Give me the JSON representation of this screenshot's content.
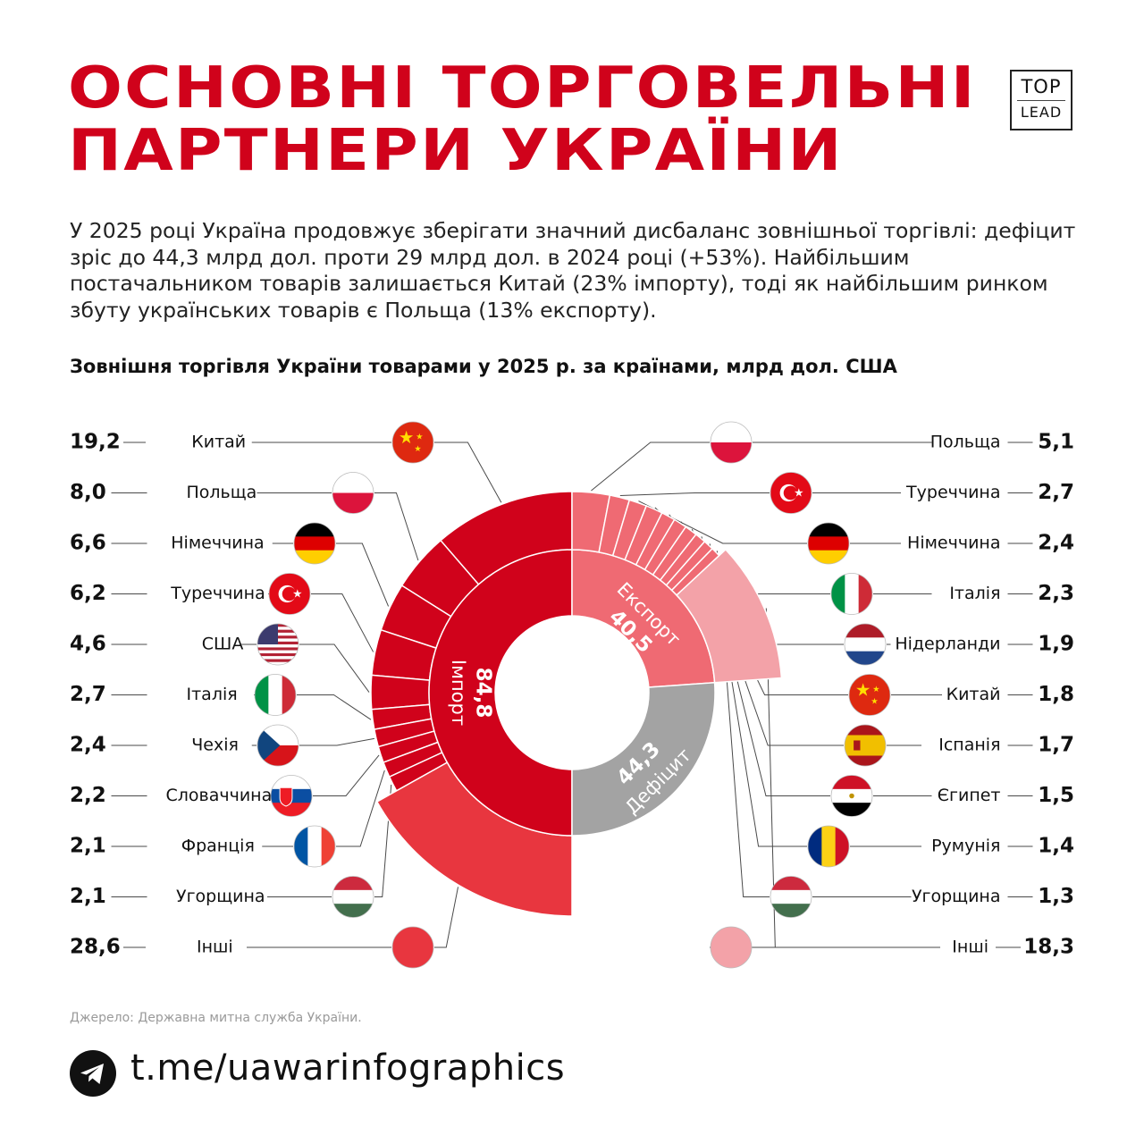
{
  "title": {
    "line1": "ОСНОВНІ ТОРГОВЕЛЬНІ",
    "line2": "ПАРТНЕРИ УКРАЇНИ"
  },
  "logo": {
    "top": "TOP",
    "bottom": "LEAD"
  },
  "intro": "У 2025 році Україна продовжує зберігати значний дисбаланс зовнішньої торгівлі: дефіцит зріс до 44,3 млрд дол. проти 29 млрд дол. в 2024 році (+53%). Найбільшим постачальником товарів залишається Китай (23% імпорту), тоді як найбільшим ринком збуту українських товарів є Польща (13% експорту).",
  "chart_data": {
    "type": "donut",
    "title": "Зовнішня торгівля України товарами у 2025 р. за країнами, млрд дол. США",
    "totals": {
      "import": {
        "label": "Імпорт",
        "value": "84,8"
      },
      "export": {
        "label": "Експорт",
        "value": "40,5"
      },
      "deficit": {
        "label": "Дефіцит",
        "value": "44,3"
      }
    },
    "import": [
      {
        "country": "Китай",
        "value": 19.2,
        "display": "19,2",
        "flag": "cn"
      },
      {
        "country": "Польща",
        "value": 8.0,
        "display": "8,0",
        "flag": "pl"
      },
      {
        "country": "Німеччина",
        "value": 6.6,
        "display": "6,6",
        "flag": "de"
      },
      {
        "country": "Туреччина",
        "value": 6.2,
        "display": "6,2",
        "flag": "tr"
      },
      {
        "country": "США",
        "value": 4.6,
        "display": "4,6",
        "flag": "us"
      },
      {
        "country": "Італія",
        "value": 2.7,
        "display": "2,7",
        "flag": "it"
      },
      {
        "country": "Чехія",
        "value": 2.4,
        "display": "2,4",
        "flag": "cz"
      },
      {
        "country": "Словаччина",
        "value": 2.2,
        "display": "2,2",
        "flag": "sk"
      },
      {
        "country": "Франція",
        "value": 2.1,
        "display": "2,1",
        "flag": "fr"
      },
      {
        "country": "Угорщина",
        "value": 2.1,
        "display": "2,1",
        "flag": "hu"
      },
      {
        "country": "Інші",
        "value": 28.6,
        "display": "28,6",
        "flag": "other-import"
      }
    ],
    "export": [
      {
        "country": "Польща",
        "value": 5.1,
        "display": "5,1",
        "flag": "pl"
      },
      {
        "country": "Туреччина",
        "value": 2.7,
        "display": "2,7",
        "flag": "tr"
      },
      {
        "country": "Німеччина",
        "value": 2.4,
        "display": "2,4",
        "flag": "de"
      },
      {
        "country": "Італія",
        "value": 2.3,
        "display": "2,3",
        "flag": "it"
      },
      {
        "country": "Нідерланди",
        "value": 1.9,
        "display": "1,9",
        "flag": "nl"
      },
      {
        "country": "Китай",
        "value": 1.8,
        "display": "1,8",
        "flag": "cn"
      },
      {
        "country": "Іспанія",
        "value": 1.7,
        "display": "1,7",
        "flag": "es"
      },
      {
        "country": "Єгипет",
        "value": 1.5,
        "display": "1,5",
        "flag": "eg"
      },
      {
        "country": "Румунія",
        "value": 1.4,
        "display": "1,4",
        "flag": "ro"
      },
      {
        "country": "Угорщина",
        "value": 1.3,
        "display": "1,3",
        "flag": "hu"
      },
      {
        "country": "Інші",
        "value": 18.3,
        "display": "18,3",
        "flag": "other-export"
      }
    ],
    "colors": {
      "import": "#d0021b",
      "import_other": "#e8363f",
      "export": "#ef6a73",
      "export_other": "#f3a2a8",
      "deficit": "#a3a3a3",
      "leader": "#4a4a4a"
    }
  },
  "source": "Джерело: Державна митна служба України.",
  "footer": {
    "icon": "telegram-icon",
    "link": "t.me/uawarinfographics"
  }
}
